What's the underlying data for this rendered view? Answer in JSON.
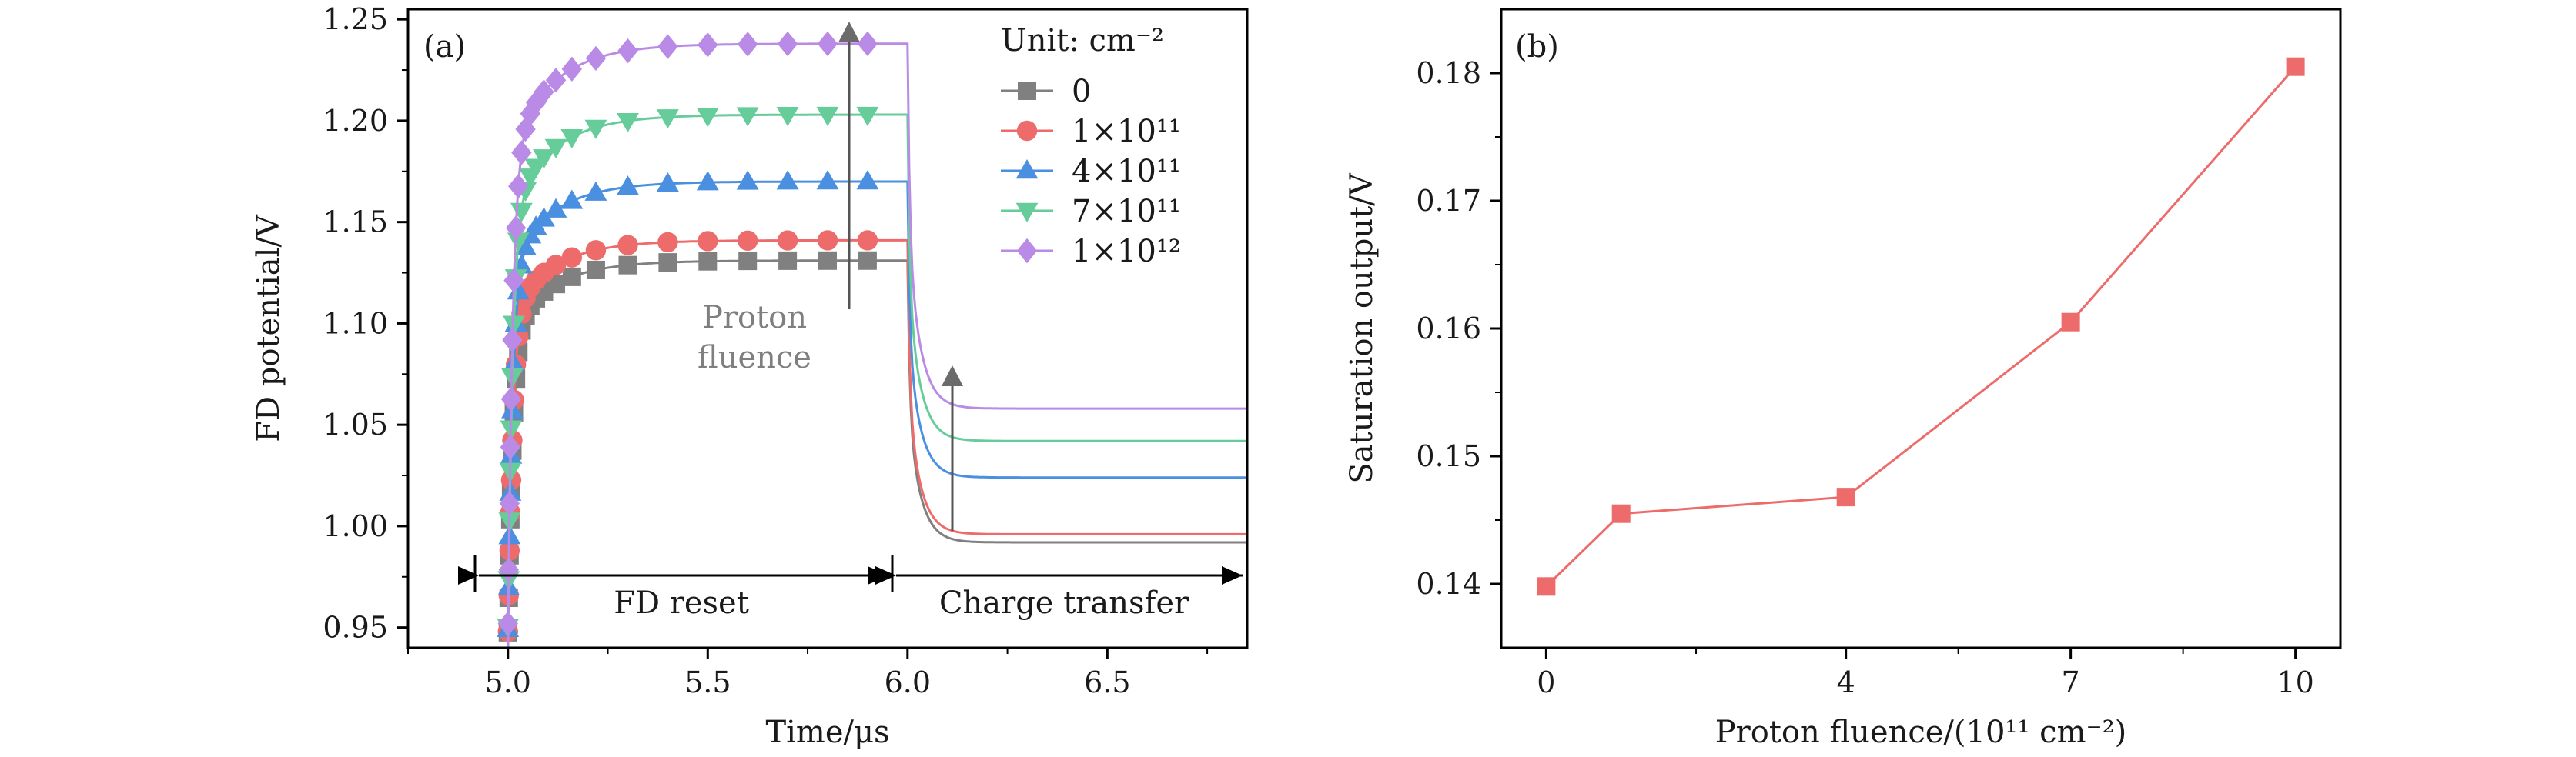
{
  "chart_data": [
    {
      "type": "line",
      "panel_label": "(a)",
      "xlabel": "Time/μs",
      "ylabel": "FD potential/V",
      "xlim": [
        4.75,
        6.85
      ],
      "ylim": [
        0.94,
        1.255
      ],
      "xticks": [
        5.0,
        5.5,
        6.0,
        6.5
      ],
      "xtick_labels": [
        "5.0",
        "5.5",
        "6.0",
        "6.5"
      ],
      "yticks": [
        0.95,
        1.0,
        1.05,
        1.1,
        1.15,
        1.2,
        1.25
      ],
      "ytick_labels": [
        "0.95",
        "1.00",
        "1.05",
        "1.10",
        "1.15",
        "1.20",
        "1.25"
      ],
      "legend": {
        "title": "Unit: cm⁻²",
        "position": "top-right",
        "entries": [
          "0",
          "1×10¹¹",
          "4×10¹¹",
          "7×10¹¹",
          "1×10¹²"
        ]
      },
      "series": [
        {
          "name": "0",
          "color": "#808080",
          "marker": "square",
          "reset_plateau": 1.131,
          "transfer_plateau": 0.992
        },
        {
          "name": "1×10¹¹",
          "color": "#ee6b6b",
          "marker": "circle",
          "reset_plateau": 1.141,
          "transfer_plateau": 0.996
        },
        {
          "name": "4×10¹¹",
          "color": "#4a8fe0",
          "marker": "triangle-up",
          "reset_plateau": 1.17,
          "transfer_plateau": 1.024
        },
        {
          "name": "7×10¹¹",
          "color": "#66cc99",
          "marker": "triangle-down",
          "reset_plateau": 1.203,
          "transfer_plateau": 1.042
        },
        {
          "name": "1×10¹²",
          "color": "#b98be6",
          "marker": "diamond",
          "reset_plateau": 1.238,
          "transfer_plateau": 1.058
        }
      ],
      "start_value": 0.94,
      "reset_start": 5.0,
      "transfer_start": 6.0,
      "annotations": {
        "proton_fluence_line1": "Proton",
        "proton_fluence_line2": "fluence",
        "fd_reset": "FD reset",
        "charge_transfer": "Charge transfer"
      }
    },
    {
      "type": "line",
      "panel_label": "(b)",
      "xlabel": "Proton fluence/(10¹¹ cm⁻²)",
      "ylabel": "Saturation output/V",
      "xlim": [
        -0.6,
        10.6
      ],
      "ylim": [
        0.135,
        0.185
      ],
      "xticks": [
        0,
        4,
        7,
        10
      ],
      "xtick_labels": [
        "0",
        "4",
        "7",
        "10"
      ],
      "yticks": [
        0.14,
        0.15,
        0.16,
        0.17,
        0.18
      ],
      "ytick_labels": [
        "0.14",
        "0.15",
        "0.16",
        "0.17",
        "0.18"
      ],
      "series": [
        {
          "name": "Saturation output",
          "color": "#ee6b6b",
          "marker": "square",
          "x": [
            0,
            1,
            4,
            7,
            10
          ],
          "y": [
            0.1398,
            0.1455,
            0.1468,
            0.1605,
            0.1805
          ]
        }
      ]
    }
  ]
}
